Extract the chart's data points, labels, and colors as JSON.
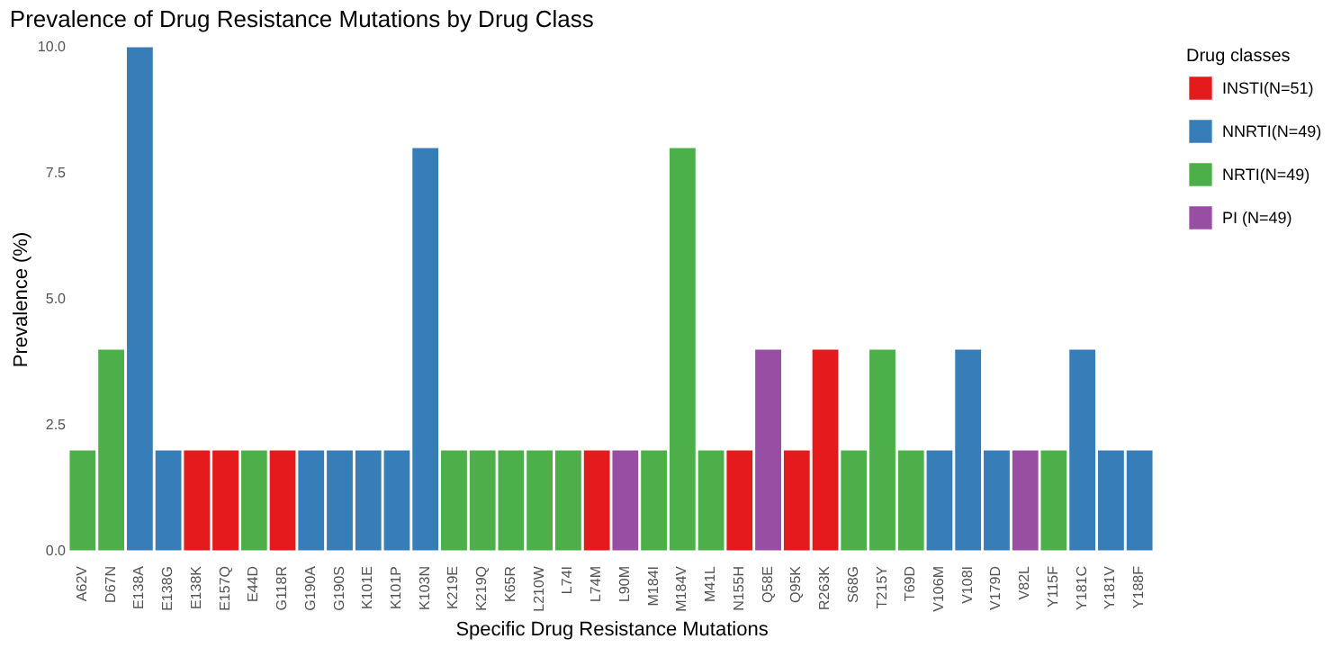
{
  "chart_data": {
    "type": "bar",
    "title": "Prevalence of Drug Resistance Mutations by Drug Class",
    "xlabel": "Specific Drug Resistance Mutations",
    "ylabel": "Prevalence (%)",
    "legend_title": "Drug classes",
    "categories": [
      "A62V",
      "D67N",
      "E138A",
      "E138G",
      "E138K",
      "E157Q",
      "E44D",
      "G118R",
      "G190A",
      "G190S",
      "K101E",
      "K101P",
      "K103N",
      "K219E",
      "K219Q",
      "K65R",
      "L210W",
      "L74I",
      "L74M",
      "L90M",
      "M184I",
      "M184V",
      "M41L",
      "N155H",
      "Q58E",
      "Q95K",
      "R263K",
      "S68G",
      "T215Y",
      "T69D",
      "V106M",
      "V108I",
      "V179D",
      "V82L",
      "Y115F",
      "Y181C",
      "Y181V",
      "Y188F"
    ],
    "series": [
      {
        "name": "INSTI(N=51)",
        "color": "#e41a1c",
        "values": [
          null,
          null,
          null,
          null,
          2,
          2,
          null,
          2,
          null,
          null,
          null,
          null,
          null,
          null,
          null,
          null,
          null,
          null,
          2,
          null,
          null,
          null,
          null,
          2,
          null,
          2,
          4,
          null,
          null,
          null,
          null,
          null,
          null,
          null,
          null,
          null,
          null,
          null
        ]
      },
      {
        "name": "NNRTI(N=49)",
        "color": "#377eb8",
        "values": [
          null,
          null,
          10,
          2,
          null,
          null,
          null,
          null,
          2,
          2,
          2,
          2,
          8,
          null,
          null,
          null,
          null,
          null,
          null,
          null,
          null,
          null,
          null,
          null,
          null,
          null,
          null,
          null,
          null,
          null,
          2,
          4,
          2,
          null,
          null,
          4,
          2,
          2
        ]
      },
      {
        "name": "NRTI(N=49)",
        "color": "#4daf4a",
        "values": [
          2,
          4,
          null,
          null,
          null,
          null,
          2,
          null,
          null,
          null,
          null,
          null,
          null,
          2,
          2,
          2,
          2,
          2,
          null,
          null,
          2,
          8,
          2,
          null,
          null,
          null,
          null,
          2,
          4,
          2,
          null,
          null,
          null,
          null,
          2,
          null,
          null,
          null
        ]
      },
      {
        "name": "PI  (N=49)",
        "color": "#984ea3",
        "values": [
          null,
          null,
          null,
          null,
          null,
          null,
          null,
          null,
          null,
          null,
          null,
          null,
          null,
          null,
          null,
          null,
          null,
          null,
          null,
          2,
          null,
          null,
          null,
          null,
          4,
          null,
          null,
          null,
          null,
          null,
          null,
          null,
          null,
          2,
          null,
          null,
          null,
          null
        ]
      }
    ],
    "ylim": [
      0,
      10
    ],
    "yticks": [
      {
        "value": 0,
        "label": "0.0"
      },
      {
        "value": 2.5,
        "label": "2.5"
      },
      {
        "value": 5,
        "label": "5.0"
      },
      {
        "value": 7.5,
        "label": "7.5"
      },
      {
        "value": 10,
        "label": "10.0"
      }
    ],
    "legend": "right"
  }
}
